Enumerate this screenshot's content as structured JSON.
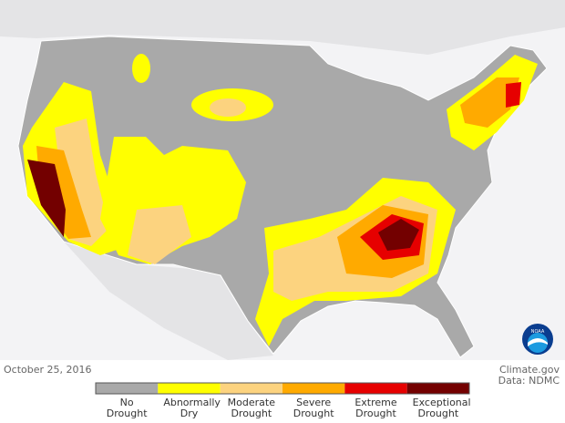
{
  "map": {
    "date": "October 25, 2016",
    "credit": "Climate.gov",
    "source": "Data: NDMC",
    "logo": "NOAA",
    "legend": [
      {
        "label": "No Drought",
        "color": "#a9a9a9"
      },
      {
        "label": "Abnormally Dry",
        "color": "#ffff00"
      },
      {
        "label": "Moderate Drought",
        "color": "#fcd37f"
      },
      {
        "label": "Severe Drought",
        "color": "#ffaa00"
      },
      {
        "label": "Extreme Drought",
        "color": "#e60000"
      },
      {
        "label": "Exceptional Drought",
        "color": "#730000"
      }
    ]
  }
}
